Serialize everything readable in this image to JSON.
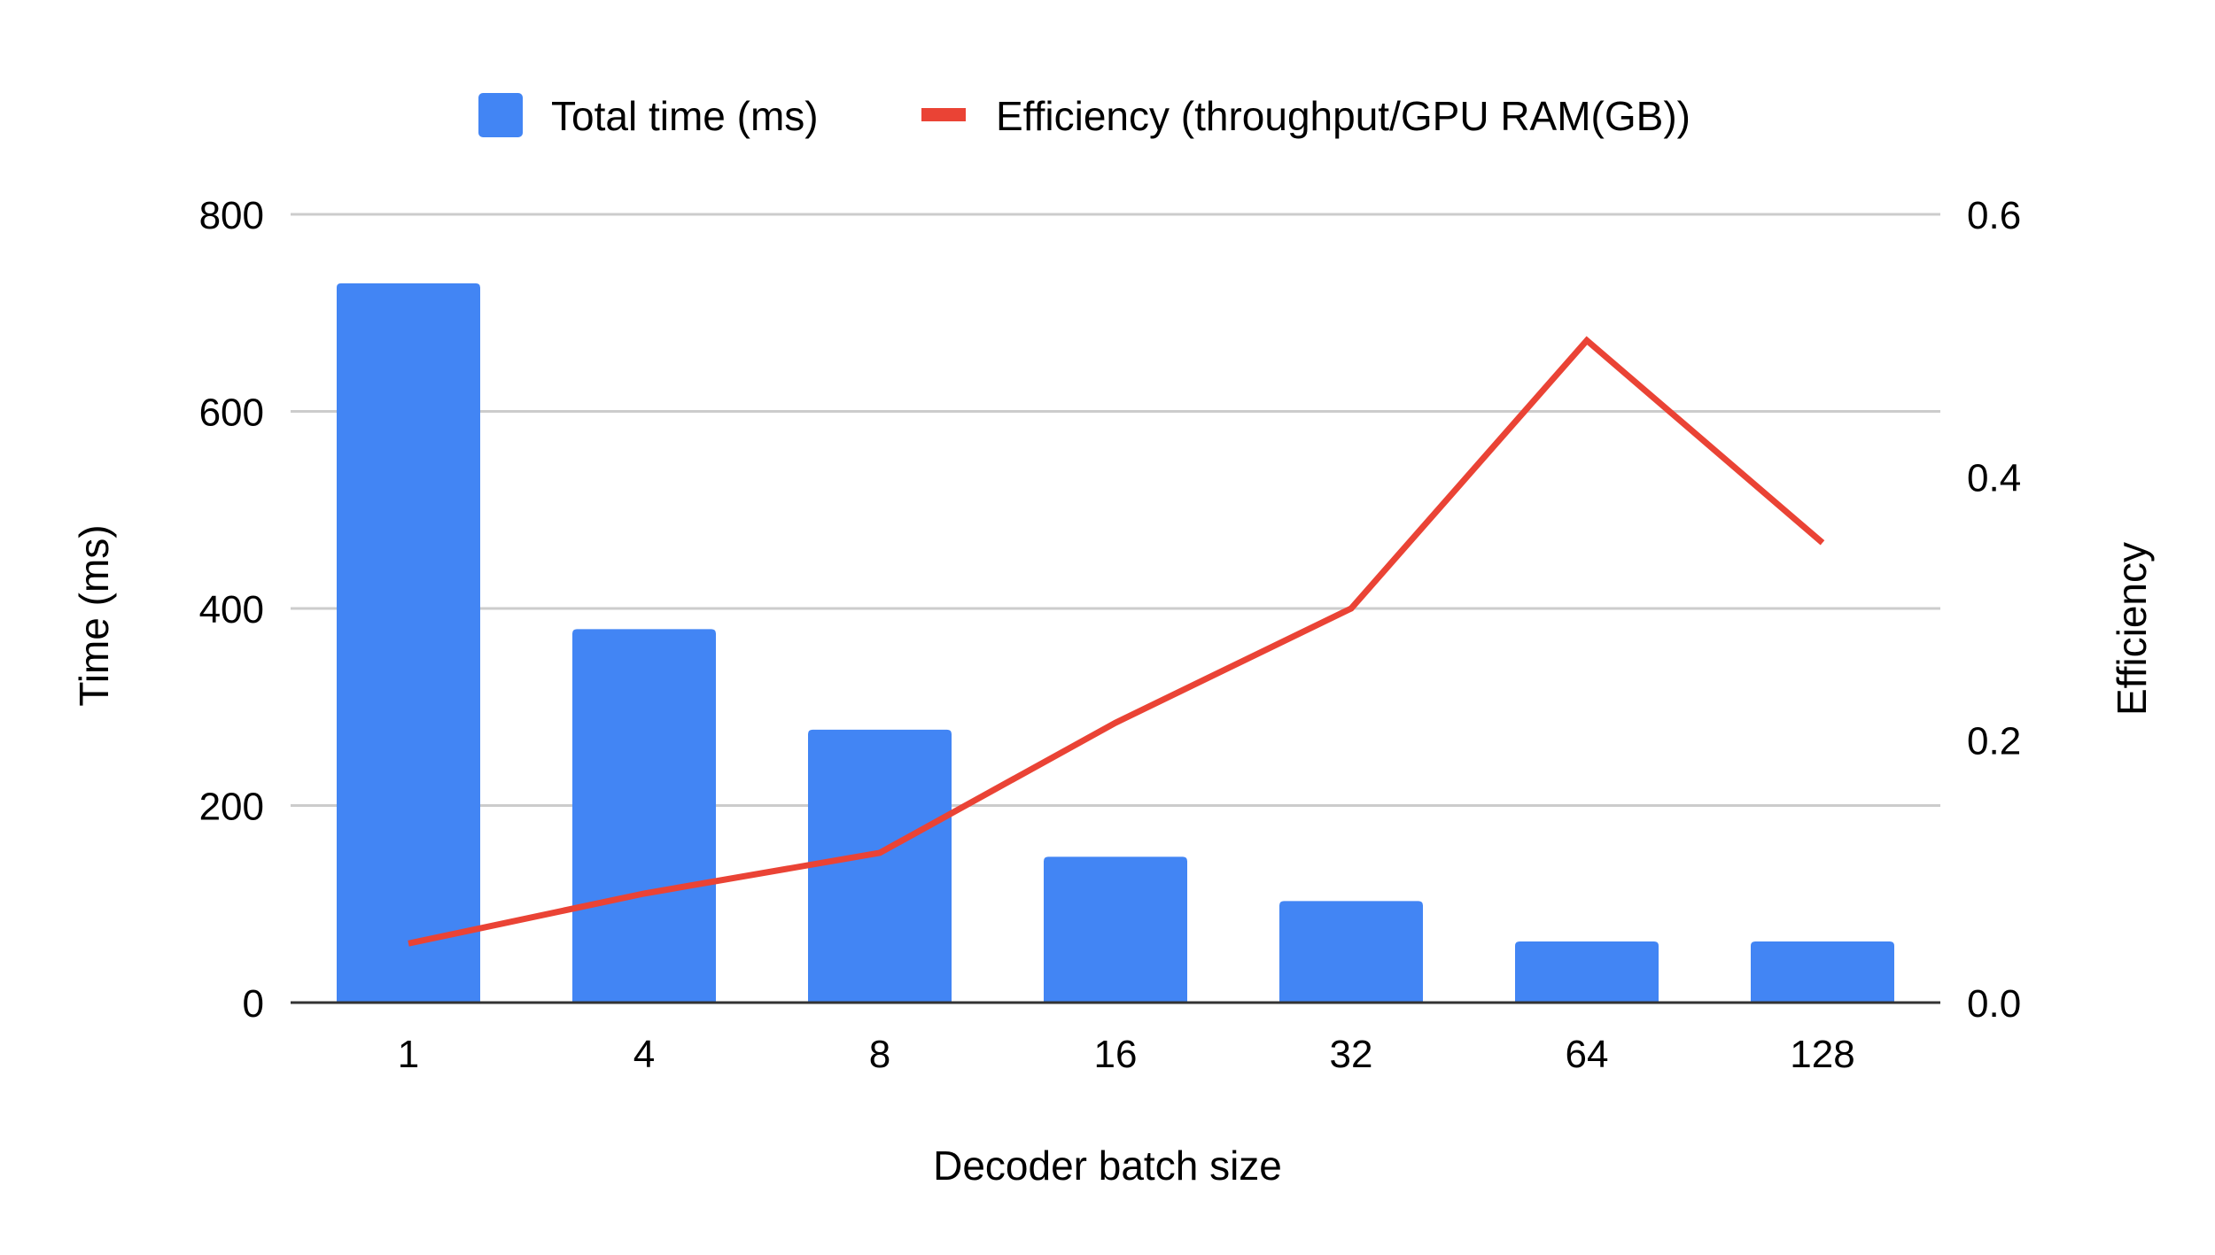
{
  "chart_data": {
    "type": "bar",
    "title": "",
    "categories": [
      "1",
      "4",
      "8",
      "16",
      "32",
      "64",
      "128"
    ],
    "series": [
      {
        "name": "Total time (ms)",
        "type": "bar",
        "axis": "left",
        "color": "#4285f4",
        "values": [
          730,
          379,
          277,
          148,
          103,
          62,
          62
        ]
      },
      {
        "name": "Efficiency (throughput/GPU RAM(GB))",
        "type": "line",
        "axis": "right",
        "color": "#ea4335",
        "values": [
          0.045,
          0.083,
          0.114,
          0.213,
          0.3,
          0.504,
          0.35
        ]
      }
    ],
    "xlabel": "Decoder batch size",
    "ylabel": "Time (ms)",
    "y2label": "Efficiency",
    "ylim": [
      0,
      800
    ],
    "y2lim": [
      0,
      0.6
    ],
    "yticks": [
      {
        "value": 0,
        "label": "0"
      },
      {
        "value": 200,
        "label": "200"
      },
      {
        "value": 400,
        "label": "400"
      },
      {
        "value": 600,
        "label": "600"
      },
      {
        "value": 800,
        "label": "800"
      }
    ],
    "y2ticks": [
      {
        "value": 0,
        "label": "0.0"
      },
      {
        "value": 0.2,
        "label": "0.2"
      },
      {
        "value": 0.4,
        "label": "0.4"
      },
      {
        "value": 0.6,
        "label": "0.6"
      }
    ],
    "grid": true,
    "legend": "top",
    "gridColor": "#cccccc",
    "axisColor": "#333333"
  }
}
